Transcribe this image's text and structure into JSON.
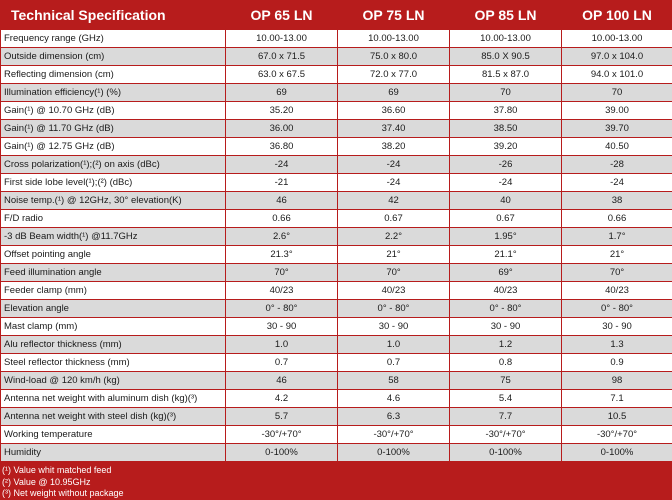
{
  "table": {
    "headers": [
      "Technical Specification",
      "OP 65 LN",
      "OP 75 LN",
      "OP 85 LN",
      "OP 100 LN"
    ],
    "rows": [
      [
        "Frequency range (GHz)",
        "10.00-13.00",
        "10.00-13.00",
        "10.00-13.00",
        "10.00-13.00"
      ],
      [
        "Outside dimension (cm)",
        "67.0 x 71.5",
        "75.0 x 80.0",
        "85.0 X 90.5",
        "97.0 x 104.0"
      ],
      [
        "Reflecting dimension (cm)",
        "63.0 x 67.5",
        "72.0 x 77.0",
        "81.5 x 87.0",
        "94.0 x 101.0"
      ],
      [
        "Illumination efficiency(¹) (%)",
        "69",
        "69",
        "70",
        "70"
      ],
      [
        "Gain(¹) @  10.70 GHz (dB)",
        "35.20",
        "36.60",
        "37.80",
        "39.00"
      ],
      [
        "Gain(¹) @  11.70 GHz (dB)",
        "36.00",
        "37.40",
        "38.50",
        "39.70"
      ],
      [
        "Gain(¹) @  12.75 GHz (dB)",
        "36.80",
        "38.20",
        "39.20",
        "40.50"
      ],
      [
        "Cross polarization(¹);(²) on axis (dBc)",
        "-24",
        "-24",
        "-26",
        "-28"
      ],
      [
        "First side lobe level(¹);(²) (dBc)",
        "-21",
        "-24",
        "-24",
        "-24"
      ],
      [
        "Noise temp.(¹) @ 12GHz, 30°  elevation(K)",
        "46",
        "42",
        "40",
        "38"
      ],
      [
        "F/D radio",
        "0.66",
        "0.67",
        "0.67",
        "0.66"
      ],
      [
        "-3 dB Beam width(¹) @11.7GHz",
        "2.6°",
        "2.2°",
        "1.95°",
        "1.7°"
      ],
      [
        "Offset pointing angle",
        "21.3°",
        "21°",
        "21.1°",
        "21°"
      ],
      [
        "Feed illumination angle",
        "70°",
        "70°",
        "69°",
        "70°"
      ],
      [
        "Feeder clamp (mm)",
        "40/23",
        "40/23",
        "40/23",
        "40/23"
      ],
      [
        "Elevation angle",
        "0° - 80°",
        "0° - 80°",
        "0° - 80°",
        "0° - 80°"
      ],
      [
        "Mast clamp (mm)",
        "30 - 90",
        "30 - 90",
        "30 - 90",
        "30 - 90"
      ],
      [
        "Alu reflector thickness (mm)",
        "1.0",
        "1.0",
        "1.2",
        "1.3"
      ],
      [
        "Steel reflector thickness (mm)",
        "0.7",
        "0.7",
        "0.8",
        "0.9"
      ],
      [
        "Wind-load @  120 km/h (kg)",
        "46",
        "58",
        "75",
        "98"
      ],
      [
        "Antenna net weight with aluminum dish (kg)(³)",
        "4.2",
        "4.6",
        "5.4",
        "7.1"
      ],
      [
        "Antenna net weight with steel dish (kg)(³)",
        "5.7",
        "6.3",
        "7.7",
        "10.5"
      ],
      [
        "Working temperature",
        "-30°/+70°",
        "-30°/+70°",
        "-30°/+70°",
        "-30°/+70°"
      ],
      [
        "Humidity",
        "0-100%",
        "0-100%",
        "0-100%",
        "0-100%"
      ]
    ]
  },
  "notes": [
    "(¹) Value whit matched feed",
    "(²) Value @ 10.95GHz",
    "(³) Net weight without package"
  ],
  "colors": {
    "header_bg": "#b71c1c",
    "row_alt": "#dadada",
    "row": "#ffffff"
  }
}
